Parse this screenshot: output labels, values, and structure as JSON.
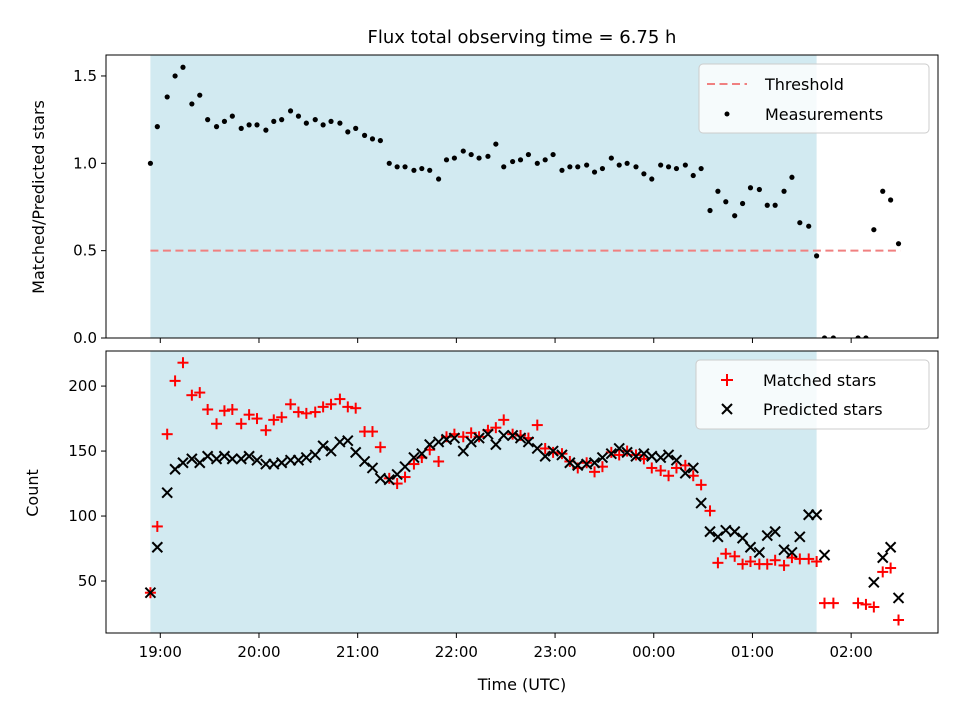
{
  "chart_data": [
    {
      "type": "scatter",
      "title": "Flux total observing time = 6.75 h",
      "ylabel": "Matched/Predicted stars",
      "ylim": [
        0,
        1.62
      ],
      "yticks": [
        "0.0",
        "0.5",
        "1.0",
        "1.5"
      ],
      "shaded_region": {
        "from": 18.9,
        "to": 25.65,
        "color": "#add8e6"
      },
      "legend": {
        "placement": "upper right",
        "entries": [
          "Threshold",
          "Measurements"
        ]
      },
      "threshold": {
        "name": "Threshold",
        "value": 0.5,
        "x_from": 18.9,
        "x_to": 26.5,
        "color": "#f08080",
        "style": "dashed"
      },
      "series": [
        {
          "name": "Measurements",
          "color": "#000000",
          "x": [
            18.9,
            18.97,
            19.07,
            19.15,
            19.23,
            19.32,
            19.4,
            19.48,
            19.57,
            19.65,
            19.73,
            19.82,
            19.9,
            19.98,
            20.07,
            20.15,
            20.23,
            20.32,
            20.4,
            20.48,
            20.57,
            20.65,
            20.73,
            20.82,
            20.9,
            20.98,
            21.07,
            21.15,
            21.23,
            21.32,
            21.4,
            21.48,
            21.57,
            21.65,
            21.73,
            21.82,
            21.9,
            21.98,
            22.07,
            22.15,
            22.23,
            22.32,
            22.4,
            22.48,
            22.57,
            22.65,
            22.73,
            22.82,
            22.9,
            22.98,
            23.07,
            23.15,
            23.23,
            23.32,
            23.4,
            23.48,
            23.57,
            23.65,
            23.73,
            23.82,
            23.9,
            23.98,
            24.07,
            24.15,
            24.23,
            24.32,
            24.4,
            24.48,
            24.57,
            24.65,
            24.73,
            24.82,
            24.9,
            24.98,
            25.07,
            25.15,
            25.23,
            25.32,
            25.4,
            25.48,
            25.57,
            25.65,
            25.73,
            25.82,
            26.07,
            26.15,
            26.23,
            26.32,
            26.4,
            26.48
          ],
          "y": [
            1.0,
            1.21,
            1.38,
            1.5,
            1.55,
            1.34,
            1.39,
            1.25,
            1.21,
            1.24,
            1.27,
            1.2,
            1.22,
            1.22,
            1.19,
            1.24,
            1.25,
            1.3,
            1.27,
            1.23,
            1.25,
            1.22,
            1.24,
            1.23,
            1.18,
            1.2,
            1.16,
            1.14,
            1.13,
            1.0,
            0.98,
            0.98,
            0.96,
            0.97,
            0.96,
            0.91,
            1.02,
            1.03,
            1.07,
            1.05,
            1.03,
            1.04,
            1.11,
            0.98,
            1.01,
            1.02,
            1.05,
            1.0,
            1.02,
            1.05,
            0.96,
            0.98,
            0.98,
            0.99,
            0.95,
            0.97,
            1.03,
            0.99,
            1.0,
            0.98,
            0.94,
            0.91,
            0.99,
            0.98,
            0.97,
            0.99,
            0.93,
            0.97,
            0.73,
            0.84,
            0.78,
            0.7,
            0.77,
            0.86,
            0.85,
            0.76,
            0.76,
            0.84,
            0.92,
            0.66,
            0.64,
            0.47,
            0.0,
            0.0,
            0.0,
            0.0,
            0.62,
            0.84,
            0.79,
            0.54
          ]
        }
      ]
    },
    {
      "type": "scatter",
      "xlabel": "Time (UTC)",
      "ylabel": "Count",
      "ylim": [
        10,
        227
      ],
      "yticks": [
        "50",
        "100",
        "150",
        "200"
      ],
      "xlim": [
        18.45,
        26.88
      ],
      "xticks": [
        {
          "value": 19,
          "label": "19:00"
        },
        {
          "value": 20,
          "label": "20:00"
        },
        {
          "value": 21,
          "label": "21:00"
        },
        {
          "value": 22,
          "label": "22:00"
        },
        {
          "value": 23,
          "label": "23:00"
        },
        {
          "value": 24,
          "label": "00:00"
        },
        {
          "value": 25,
          "label": "01:00"
        },
        {
          "value": 26,
          "label": "02:00"
        }
      ],
      "shaded_region": {
        "from": 18.9,
        "to": 25.65,
        "color": "#add8e6"
      },
      "legend": {
        "placement": "upper right",
        "entries": [
          "Matched stars",
          "Predicted stars"
        ]
      },
      "series": [
        {
          "name": "Matched stars",
          "color": "#ff0000",
          "marker": "plus",
          "x": [
            18.9,
            18.97,
            19.07,
            19.15,
            19.23,
            19.32,
            19.4,
            19.48,
            19.57,
            19.65,
            19.73,
            19.82,
            19.9,
            19.98,
            20.07,
            20.15,
            20.23,
            20.32,
            20.4,
            20.48,
            20.57,
            20.65,
            20.73,
            20.82,
            20.9,
            20.98,
            21.07,
            21.15,
            21.23,
            21.32,
            21.4,
            21.48,
            21.57,
            21.65,
            21.73,
            21.82,
            21.9,
            21.98,
            22.07,
            22.15,
            22.23,
            22.32,
            22.4,
            22.48,
            22.57,
            22.65,
            22.73,
            22.82,
            22.9,
            22.98,
            23.07,
            23.15,
            23.23,
            23.32,
            23.4,
            23.48,
            23.57,
            23.65,
            23.73,
            23.82,
            23.9,
            23.98,
            24.07,
            24.15,
            24.23,
            24.32,
            24.4,
            24.48,
            24.57,
            24.65,
            24.73,
            24.82,
            24.9,
            24.98,
            25.07,
            25.15,
            25.23,
            25.32,
            25.4,
            25.48,
            25.57,
            25.65,
            25.73,
            25.82,
            26.07,
            26.15,
            26.23,
            26.32,
            26.4,
            26.48
          ],
          "y": [
            41,
            92,
            163,
            204,
            218,
            193,
            195,
            182,
            171,
            181,
            182,
            171,
            178,
            175,
            166,
            174,
            176,
            186,
            180,
            179,
            180,
            184,
            186,
            190,
            184,
            183,
            165,
            165,
            153,
            129,
            125,
            130,
            140,
            145,
            151,
            142,
            161,
            163,
            161,
            164,
            161,
            166,
            168,
            174,
            163,
            162,
            160,
            170,
            152,
            149,
            148,
            142,
            137,
            141,
            134,
            138,
            149,
            147,
            150,
            147,
            144,
            137,
            135,
            131,
            137,
            139,
            131,
            124,
            104,
            64,
            71,
            69,
            63,
            65,
            63,
            63,
            66,
            62,
            68,
            67,
            67,
            65,
            33,
            33,
            33,
            32,
            30,
            57,
            60,
            20
          ]
        },
        {
          "name": "Predicted stars",
          "color": "#000000",
          "marker": "x",
          "x": [
            18.9,
            18.97,
            19.07,
            19.15,
            19.23,
            19.32,
            19.4,
            19.48,
            19.57,
            19.65,
            19.73,
            19.82,
            19.9,
            19.98,
            20.07,
            20.15,
            20.23,
            20.32,
            20.4,
            20.48,
            20.57,
            20.65,
            20.73,
            20.82,
            20.9,
            20.98,
            21.07,
            21.15,
            21.23,
            21.32,
            21.4,
            21.48,
            21.57,
            21.65,
            21.73,
            21.82,
            21.9,
            21.98,
            22.07,
            22.15,
            22.23,
            22.32,
            22.4,
            22.48,
            22.57,
            22.65,
            22.73,
            22.82,
            22.9,
            22.98,
            23.07,
            23.15,
            23.23,
            23.32,
            23.4,
            23.48,
            23.57,
            23.65,
            23.73,
            23.82,
            23.9,
            23.98,
            24.07,
            24.15,
            24.23,
            24.32,
            24.4,
            24.48,
            24.57,
            24.65,
            24.73,
            24.82,
            24.9,
            24.98,
            25.07,
            25.15,
            25.23,
            25.32,
            25.4,
            25.48,
            25.57,
            25.65,
            25.73,
            26.23,
            26.32,
            26.4,
            26.48
          ],
          "y": [
            41,
            76,
            118,
            136,
            141,
            144,
            141,
            146,
            144,
            146,
            144,
            144,
            146,
            143,
            140,
            140,
            141,
            143,
            143,
            145,
            147,
            154,
            150,
            157,
            158,
            149,
            142,
            137,
            129,
            128,
            132,
            138,
            145,
            148,
            155,
            157,
            159,
            160,
            150,
            157,
            160,
            163,
            155,
            162,
            162,
            160,
            157,
            152,
            146,
            150,
            147,
            141,
            139,
            140,
            141,
            145,
            148,
            152,
            149,
            146,
            148,
            146,
            145,
            147,
            143,
            133,
            137,
            110,
            88,
            84,
            89,
            88,
            83,
            76,
            72,
            85,
            88,
            74,
            72,
            84,
            101,
            101,
            70,
            49,
            68,
            76,
            37
          ]
        }
      ]
    }
  ]
}
